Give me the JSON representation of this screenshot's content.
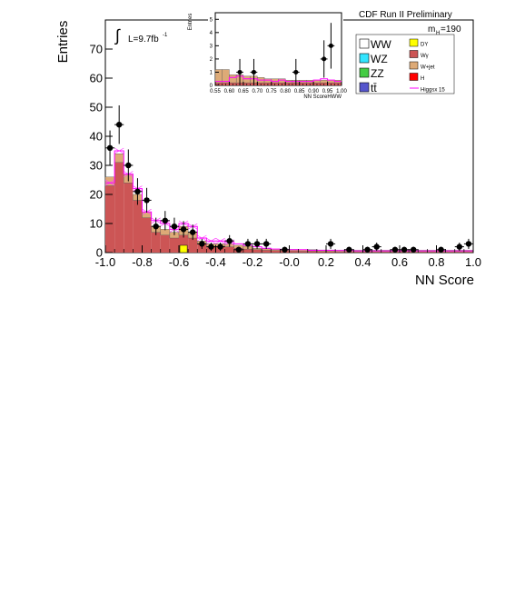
{
  "header": {
    "experiment": "CDF Run II Preliminary",
    "mass_label_prefix": "m",
    "mass_label_sub": "H",
    "mass_label_value": "=190",
    "lumi_prefix": "L=9.7fb",
    "lumi_exponent": "-1"
  },
  "legend": {
    "left": [
      {
        "label": "WW",
        "color": "#ffffff"
      },
      {
        "label": "WZ",
        "color": "#33e5ff"
      },
      {
        "label": "ZZ",
        "color": "#44cc44"
      },
      {
        "label": "tt̄",
        "color": "#5555cc"
      }
    ],
    "right": [
      {
        "label": "DY",
        "color": "#ffff00"
      },
      {
        "label": "Wγ",
        "color": "#cc5555"
      },
      {
        "label": "W+jet",
        "color": "#ddaa77"
      },
      {
        "label": "H",
        "color": "#ff0000"
      },
      {
        "label": "Higgsx 15",
        "color": "#ff00ff",
        "line": true
      }
    ]
  },
  "chart_data": [
    {
      "type": "bar",
      "name": "main",
      "xlabel": "NN Score",
      "ylabel": "Entries",
      "xlim": [
        -1.0,
        1.0
      ],
      "ylim": [
        0,
        80
      ],
      "xticks": [
        "-1.0",
        "-0.8",
        "-0.6",
        "-0.4",
        "-0.2",
        "-0.0",
        "0.2",
        "0.4",
        "0.6",
        "0.8",
        "1.0"
      ],
      "yticks": [
        "0",
        "10",
        "20",
        "30",
        "40",
        "50",
        "60",
        "70"
      ],
      "bin_edges_start": -1.0,
      "bin_width": 0.05,
      "background_wgamma": [
        23,
        31,
        24,
        18,
        12,
        7,
        6,
        5,
        6,
        5,
        3,
        2,
        2,
        2,
        1.5,
        1.2,
        1,
        0.8,
        0.7,
        0.6,
        0.6,
        0.5,
        0.5,
        0.4,
        0.4,
        0.3,
        0.3,
        0.3,
        0.3,
        0.3,
        0.3,
        0.3,
        0.3,
        0.3,
        0.3,
        0.3,
        0.3,
        0.3,
        0.3,
        0.3
      ],
      "background_wjet": [
        3,
        3,
        3,
        2,
        2,
        2,
        2,
        2,
        3,
        2,
        1,
        1,
        1,
        1,
        1,
        1,
        0.5,
        0.5,
        0.5,
        0.5,
        0.5,
        0.5,
        0.5,
        0.5,
        0.5,
        0.5,
        0.5,
        0.5,
        0.5,
        0.5,
        0.5,
        0.5,
        0.5,
        0.5,
        0.5,
        0.5,
        0.5,
        0.5,
        0.5,
        0.5
      ],
      "background_dy": [
        0,
        0,
        0,
        0,
        0,
        0,
        0,
        0,
        2.5,
        0,
        0,
        0,
        0,
        0,
        0,
        0,
        0,
        0,
        0,
        0,
        0,
        0,
        0,
        0,
        0,
        0,
        0,
        0,
        0,
        0,
        0,
        0,
        0,
        0,
        0,
        0,
        0,
        0,
        0,
        0
      ],
      "higgs_x15": [
        24,
        35,
        27,
        22,
        14,
        11,
        10,
        8,
        10,
        9,
        5,
        4,
        4,
        3.5,
        3,
        2.5,
        2,
        1.5,
        1.2,
        1,
        1,
        1,
        0.8,
        0.8,
        0.8,
        0.7,
        0.7,
        0.6,
        0.6,
        0.6,
        0.6,
        0.6,
        0.6,
        0.6,
        0.6,
        0.6,
        0.6,
        0.6,
        0.6,
        0.6
      ],
      "data_x": [
        -0.975,
        -0.925,
        -0.875,
        -0.825,
        -0.775,
        -0.725,
        -0.675,
        -0.625,
        -0.575,
        -0.525,
        -0.475,
        -0.425,
        -0.375,
        -0.325,
        -0.275,
        -0.225,
        -0.175,
        -0.125,
        -0.025,
        0.225,
        0.325,
        0.425,
        0.475,
        0.575,
        0.625,
        0.675,
        0.825,
        0.925,
        0.975
      ],
      "data_y": [
        36,
        44,
        30,
        21,
        18,
        9,
        11,
        9,
        8,
        7,
        3,
        2,
        2,
        4,
        1,
        3,
        3,
        3,
        1,
        3,
        1,
        1,
        2,
        1,
        1,
        1,
        1,
        2,
        3
      ]
    },
    {
      "type": "bar",
      "name": "inset",
      "xlabel": "NN ScoreHWW",
      "ylabel": "Entries",
      "xlim": [
        0.55,
        1.0
      ],
      "ylim": [
        0,
        5.5
      ],
      "xticks": [
        "0.55",
        "0.60",
        "0.65",
        "0.70",
        "0.75",
        "0.80",
        "0.85",
        "0.90",
        "0.95",
        "1.00"
      ],
      "yticks": [
        "0",
        "1",
        "2",
        "3",
        "4",
        "5"
      ],
      "bin_edges_start": 0.55,
      "bin_width": 0.025,
      "background_wgamma": [
        0.2,
        0.2,
        0.2,
        0.2,
        0.2,
        0.2,
        0.2,
        0.2,
        0.2,
        0.2,
        0.2,
        0.2,
        0.2,
        0.2,
        0.2,
        0.2,
        0.2,
        0.2
      ],
      "background_wjet": [
        1.0,
        1.0,
        0.6,
        0.6,
        0.5,
        0.5,
        0.4,
        0.3,
        0.3,
        0.3,
        0.2,
        0.2,
        0.2,
        0.2,
        0.2,
        0.2,
        0.2,
        0.2
      ],
      "higgs_x15": [
        0.3,
        0.3,
        0.6,
        0.7,
        0.5,
        0.5,
        0.4,
        0.4,
        0.3,
        0.4,
        0.3,
        0.3,
        0.3,
        0.3,
        0.4,
        0.5,
        0.4,
        0.3
      ],
      "data_x": [
        0.6375,
        0.6875,
        0.8375,
        0.9375,
        0.9625
      ],
      "data_y": [
        1,
        1,
        1,
        2,
        3
      ]
    }
  ]
}
